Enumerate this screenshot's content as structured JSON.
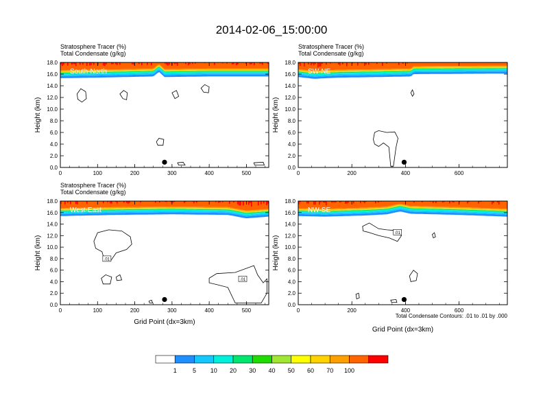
{
  "figure": {
    "title": "2014-02-06_15:00:00",
    "contour_note": "Total Condensate Contours: .01 to .01 by .000"
  },
  "colorbar": {
    "labels": [
      "1",
      "5",
      "10",
      "20",
      "30",
      "40",
      "50",
      "60",
      "70",
      "100"
    ],
    "colors": [
      "#ffffff",
      "#1f8fff",
      "#14c8ff",
      "#00f0dc",
      "#00e66e",
      "#1edc00",
      "#a0e632",
      "#ffff00",
      "#ffd200",
      "#ffa000",
      "#ff6400",
      "#ff0000"
    ]
  },
  "chart_data": [
    {
      "type": "heatmap",
      "panel": "South-North",
      "title": "Stratosphere Tracer   (%)",
      "subtitle": "Total Condensate   (g/kg)",
      "ylabel": "Height (km)",
      "xlabel": "",
      "xlim": [
        0,
        560
      ],
      "ylim": [
        0,
        18
      ],
      "xticks": [
        "0",
        "100",
        "200",
        "300",
        "400",
        "500"
      ],
      "yticks": [
        "0.0",
        "2.0",
        "4.0",
        "6.0",
        "8.0",
        "10.0",
        "12.0",
        "14.0",
        "16.0",
        "18.0"
      ],
      "tracer_top_height": [
        [
          0,
          15.3
        ],
        [
          100,
          15.4
        ],
        [
          250,
          15.6
        ],
        [
          265,
          16.4
        ],
        [
          280,
          15.5
        ],
        [
          400,
          15.6
        ],
        [
          560,
          15.6
        ]
      ],
      "marker": {
        "x": 280,
        "y": 0.9
      },
      "condensate_contours": [
        [
          [
            45,
            12.6
          ],
          [
            55,
            13.5
          ],
          [
            68,
            13.0
          ],
          [
            70,
            11.8
          ],
          [
            58,
            11.2
          ],
          [
            47,
            11.7
          ]
        ],
        [
          [
            160,
            12.6
          ],
          [
            170,
            13.2
          ],
          [
            180,
            12.8
          ],
          [
            178,
            11.6
          ],
          [
            168,
            11.8
          ]
        ],
        [
          [
            300,
            12.8
          ],
          [
            312,
            13.2
          ],
          [
            318,
            12.2
          ],
          [
            308,
            11.8
          ]
        ],
        [
          [
            378,
            13.6
          ],
          [
            388,
            14.2
          ],
          [
            400,
            13.8
          ],
          [
            398,
            12.8
          ],
          [
            385,
            12.9
          ]
        ],
        [
          [
            258,
            4.4
          ],
          [
            265,
            5.0
          ],
          [
            278,
            4.8
          ],
          [
            276,
            3.8
          ],
          [
            262,
            3.8
          ]
        ],
        [
          [
            315,
            0.8
          ],
          [
            330,
            0.9
          ],
          [
            335,
            0.4
          ],
          [
            318,
            0.4
          ]
        ],
        [
          [
            520,
            0.8
          ],
          [
            545,
            0.9
          ],
          [
            548,
            0.4
          ],
          [
            522,
            0.4
          ]
        ]
      ]
    },
    {
      "type": "heatmap",
      "panel": "SW-NE",
      "title": "Stratosphere Tracer   (%)",
      "subtitle": "Total Condensate   (g/kg)",
      "ylabel": "Height (km)",
      "xlabel": "",
      "xlim": [
        0,
        780
      ],
      "ylim": [
        0,
        18
      ],
      "xticks": [
        "0",
        "200",
        "400",
        "600"
      ],
      "yticks": [
        "0.0",
        "2.0",
        "4.0",
        "6.0",
        "8.0",
        "10.0",
        "12.0",
        "14.0",
        "16.0",
        "18.0"
      ],
      "tracer_top_height": [
        [
          0,
          15.5
        ],
        [
          60,
          15.2
        ],
        [
          150,
          15.4
        ],
        [
          300,
          15.5
        ],
        [
          420,
          15.6
        ],
        [
          430,
          16.0
        ],
        [
          780,
          16.1
        ]
      ],
      "marker": {
        "x": 395,
        "y": 0.9
      },
      "condensate_contours": [
        [
          [
            280,
            4.8
          ],
          [
            285,
            6.0
          ],
          [
            300,
            6.3
          ],
          [
            330,
            6.0
          ],
          [
            360,
            6.1
          ],
          [
            372,
            5.0
          ],
          [
            365,
            3.5
          ],
          [
            355,
            0.2
          ],
          [
            345,
            0.2
          ],
          [
            338,
            3.5
          ],
          [
            318,
            4.2
          ],
          [
            300,
            3.6
          ],
          [
            285,
            4.0
          ]
        ],
        [
          [
            420,
            12.8
          ],
          [
            426,
            13.3
          ],
          [
            432,
            12.6
          ],
          [
            426,
            12.2
          ]
        ]
      ]
    },
    {
      "type": "heatmap",
      "panel": "West-East",
      "title": "Stratosphere Tracer   (%)",
      "subtitle": "Total Condensate   (g/kg)",
      "ylabel": "Height (km)",
      "xlabel": "Grid Point (dx=3km)",
      "xlim": [
        0,
        560
      ],
      "ylim": [
        0,
        18
      ],
      "xticks": [
        "0",
        "100",
        "200",
        "300",
        "400",
        "500"
      ],
      "yticks": [
        "0.0",
        "2.0",
        "4.0",
        "6.0",
        "8.0",
        "10.0",
        "12.0",
        "14.0",
        "16.0",
        "18.0"
      ],
      "tracer_top_height": [
        [
          0,
          15.4
        ],
        [
          150,
          15.6
        ],
        [
          300,
          15.7
        ],
        [
          450,
          15.6
        ],
        [
          500,
          15.0
        ],
        [
          560,
          15.3
        ]
      ],
      "marker": {
        "x": 280,
        "y": 0.9
      },
      "contour_labels": [
        {
          "text": ".01",
          "x": 125,
          "y": 8.0
        },
        {
          "text": ".01",
          "x": 490,
          "y": 4.5
        }
      ],
      "condensate_contours": [
        [
          [
            90,
            11.0
          ],
          [
            100,
            12.5
          ],
          [
            130,
            13.0
          ],
          [
            165,
            12.8
          ],
          [
            188,
            11.8
          ],
          [
            192,
            10.5
          ],
          [
            178,
            9.6
          ],
          [
            150,
            9.0
          ],
          [
            135,
            7.6
          ],
          [
            118,
            7.8
          ],
          [
            112,
            9.2
          ],
          [
            95,
            9.8
          ]
        ],
        [
          [
            110,
            4.6
          ],
          [
            122,
            5.2
          ],
          [
            138,
            4.8
          ],
          [
            134,
            3.6
          ],
          [
            115,
            3.6
          ]
        ],
        [
          [
            150,
            4.8
          ],
          [
            160,
            5.2
          ],
          [
            165,
            4.3
          ],
          [
            152,
            4.2
          ]
        ],
        [
          [
            400,
            4.6
          ],
          [
            420,
            5.4
          ],
          [
            470,
            5.6
          ],
          [
            520,
            6.8
          ],
          [
            530,
            5.2
          ],
          [
            545,
            3.8
          ],
          [
            555,
            4.5
          ],
          [
            555,
            2.0
          ],
          [
            540,
            0.3
          ],
          [
            470,
            0.3
          ],
          [
            450,
            3.0
          ],
          [
            420,
            3.5
          ],
          [
            400,
            3.8
          ]
        ],
        [
          [
            238,
            0.6
          ],
          [
            245,
            0.8
          ],
          [
            248,
            0.3
          ],
          [
            240,
            0.3
          ]
        ]
      ]
    },
    {
      "type": "heatmap",
      "panel": "NW-SE",
      "title": "",
      "subtitle": "",
      "ylabel": "Height (km)",
      "xlabel": "Grid Point (dx=3km)",
      "xlim": [
        0,
        780
      ],
      "ylim": [
        0,
        18
      ],
      "xticks": [
        "0",
        "200",
        "400",
        "600"
      ],
      "yticks": [
        "0.0",
        "2.0",
        "4.0",
        "6.0",
        "8.0",
        "10.0",
        "12.0",
        "14.0",
        "16.0",
        "18.0"
      ],
      "tracer_top_height": [
        [
          0,
          15.4
        ],
        [
          100,
          15.3
        ],
        [
          250,
          15.5
        ],
        [
          330,
          15.7
        ],
        [
          380,
          16.2
        ],
        [
          420,
          15.8
        ],
        [
          600,
          15.6
        ],
        [
          780,
          15.3
        ]
      ],
      "marker": {
        "x": 395,
        "y": 0.9
      },
      "contour_labels": [
        {
          "text": ".01",
          "x": 370,
          "y": 12.6
        }
      ],
      "condensate_contours": [
        [
          [
            240,
            13.6
          ],
          [
            265,
            14.2
          ],
          [
            300,
            13.2
          ],
          [
            330,
            13.0
          ],
          [
            360,
            12.9
          ],
          [
            385,
            12.0
          ],
          [
            370,
            11.0
          ],
          [
            340,
            11.6
          ],
          [
            300,
            12.0
          ],
          [
            260,
            12.6
          ],
          [
            242,
            12.8
          ]
        ],
        [
          [
            500,
            12.2
          ],
          [
            508,
            12.5
          ],
          [
            512,
            11.8
          ],
          [
            504,
            11.6
          ]
        ],
        [
          [
            415,
            5.0
          ],
          [
            430,
            6.0
          ],
          [
            445,
            5.4
          ],
          [
            440,
            4.2
          ],
          [
            420,
            4.0
          ]
        ],
        [
          [
            215,
            1.8
          ],
          [
            225,
            2.0
          ],
          [
            228,
            1.2
          ],
          [
            218,
            1.0
          ]
        ],
        [
          [
            345,
            0.8
          ],
          [
            365,
            0.9
          ],
          [
            368,
            0.4
          ],
          [
            348,
            0.4
          ]
        ]
      ]
    }
  ]
}
